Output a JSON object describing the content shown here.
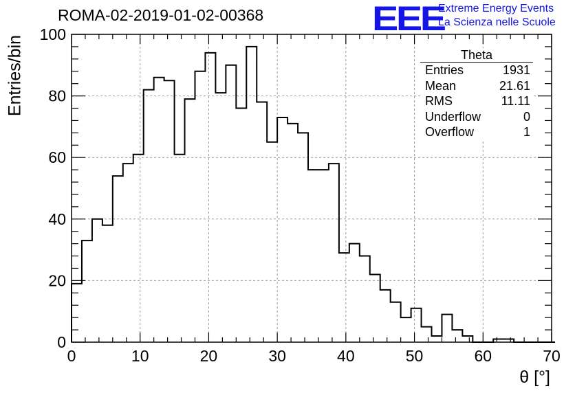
{
  "header": {
    "title": "ROMA-02-2019-01-02-00368",
    "logo_mark": "EEE",
    "logo_line1": "Extreme Energy Events",
    "logo_line2": "La Scienza nelle Scuole"
  },
  "colors": {
    "logo": "#1515e6",
    "line": "#000000",
    "grid": "#9a9a9a"
  },
  "stats_box": {
    "title": "Theta",
    "rows": [
      {
        "label": "Entries",
        "value": "1931"
      },
      {
        "label": "Mean",
        "value": "21.61"
      },
      {
        "label": "RMS",
        "value": "11.11"
      },
      {
        "label": "Underflow",
        "value": "0"
      },
      {
        "label": "Overflow",
        "value": "1"
      }
    ]
  },
  "chart_data": {
    "type": "histogram",
    "xlabel": "θ [°]",
    "ylabel": "Entries/bin",
    "xlim": [
      0,
      70
    ],
    "ylim": [
      0,
      100
    ],
    "x_ticks": [
      0,
      10,
      20,
      30,
      40,
      50,
      60,
      70
    ],
    "y_ticks": [
      0,
      20,
      40,
      60,
      80,
      100
    ],
    "grid": true,
    "bin_width": 1.5,
    "bin_edges_start": 0,
    "values": [
      19,
      33,
      40,
      38,
      54,
      58,
      61,
      82,
      86,
      85,
      61,
      79,
      88,
      94,
      81,
      90,
      76,
      96,
      78,
      65,
      73,
      71,
      68,
      56,
      56,
      58,
      29,
      32,
      28,
      22,
      17,
      13,
      8,
      11,
      5,
      2,
      9,
      4,
      2,
      0,
      0,
      1,
      1,
      0,
      0,
      0,
      0
    ]
  }
}
